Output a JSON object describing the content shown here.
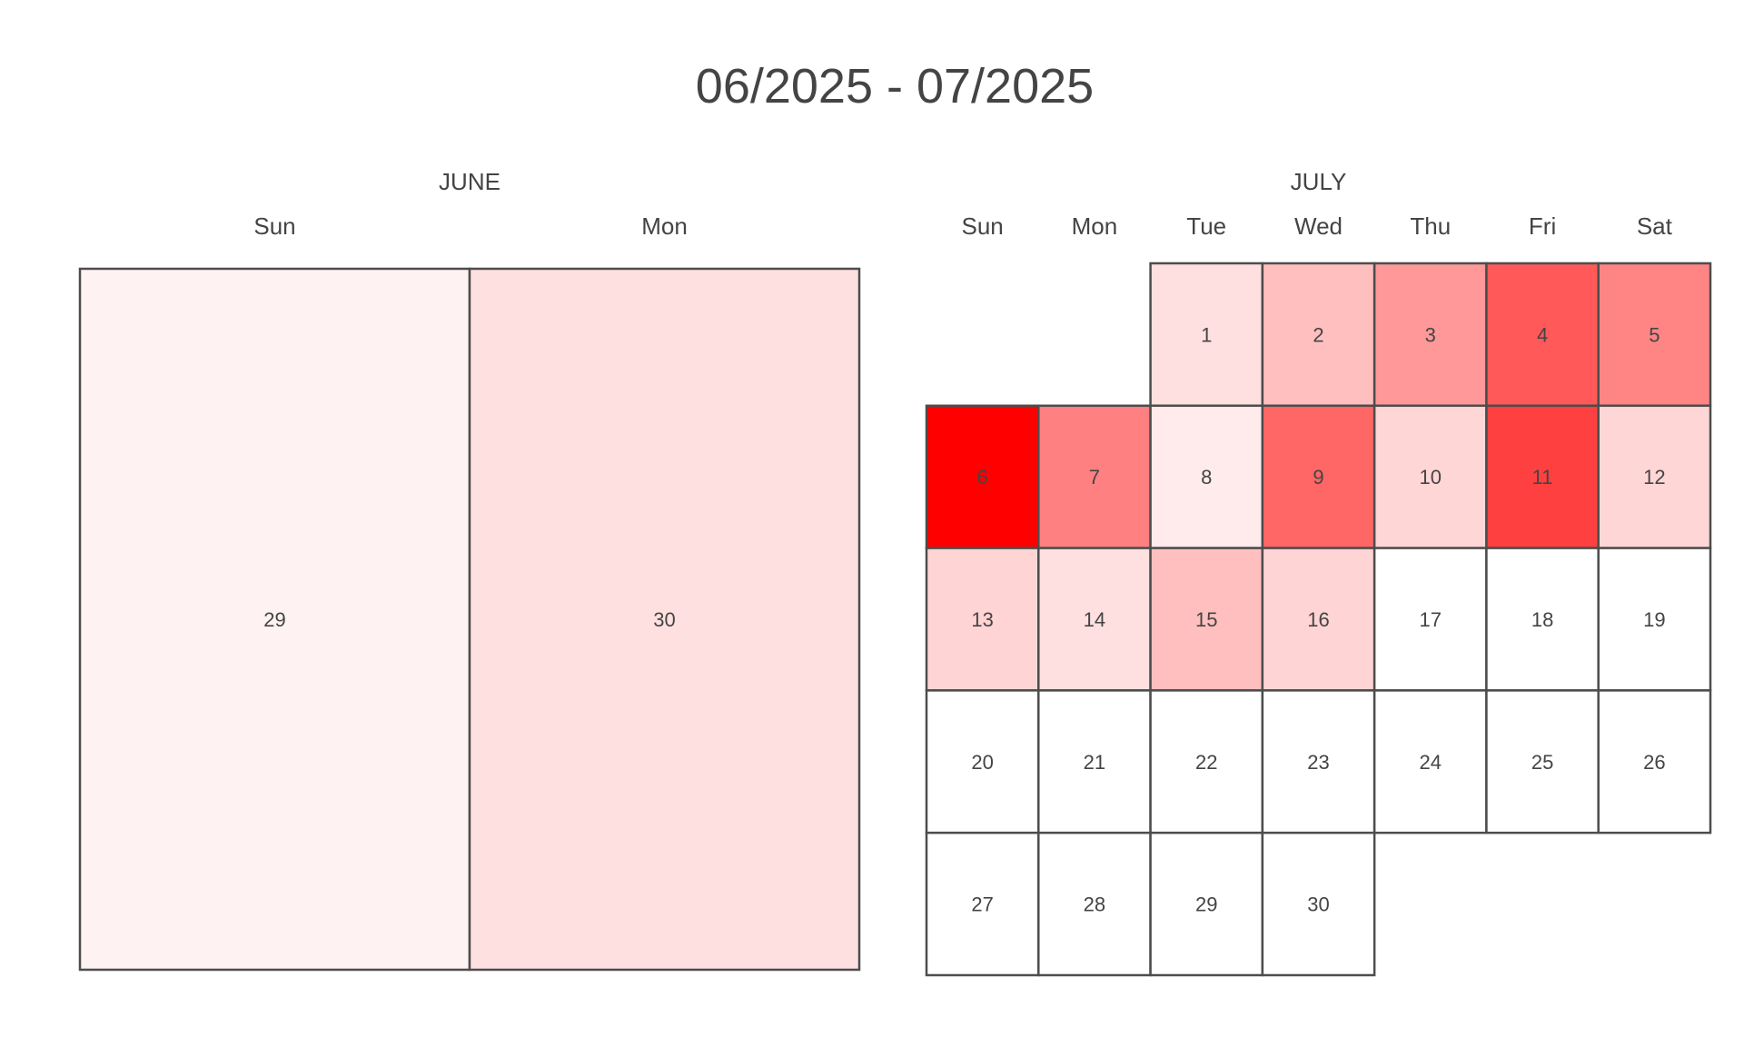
{
  "chart_data": {
    "type": "heatmap",
    "title": "06/2025 - 07/2025",
    "colors": {
      "low": "#ffffff",
      "high": "#ff0000",
      "border": "#4d4d4d",
      "text": "#444444"
    },
    "months": [
      {
        "label": "JUNE",
        "weekdays": [
          "Sun",
          "Mon"
        ],
        "first_weekday_index": 0,
        "days": [
          29,
          30
        ],
        "values": [
          0.05,
          0.12
        ],
        "weeks": 1
      },
      {
        "label": "JULY",
        "weekdays": [
          "Sun",
          "Mon",
          "Tue",
          "Wed",
          "Thu",
          "Fri",
          "Sat"
        ],
        "first_weekday_index": 2,
        "days": [
          1,
          2,
          3,
          4,
          5,
          6,
          7,
          8,
          9,
          10,
          11,
          12,
          13,
          14,
          15,
          16,
          17,
          18,
          19,
          20,
          21,
          22,
          23,
          24,
          25,
          26,
          27,
          28,
          29,
          30
        ],
        "values": [
          0.12,
          0.25,
          0.4,
          0.65,
          0.48,
          1.0,
          0.5,
          0.08,
          0.6,
          0.16,
          0.75,
          0.16,
          0.17,
          0.12,
          0.25,
          0.17,
          0,
          0,
          0,
          0,
          0,
          0,
          0,
          0,
          0,
          0,
          0,
          0,
          0,
          0
        ],
        "weeks": 5
      }
    ]
  }
}
